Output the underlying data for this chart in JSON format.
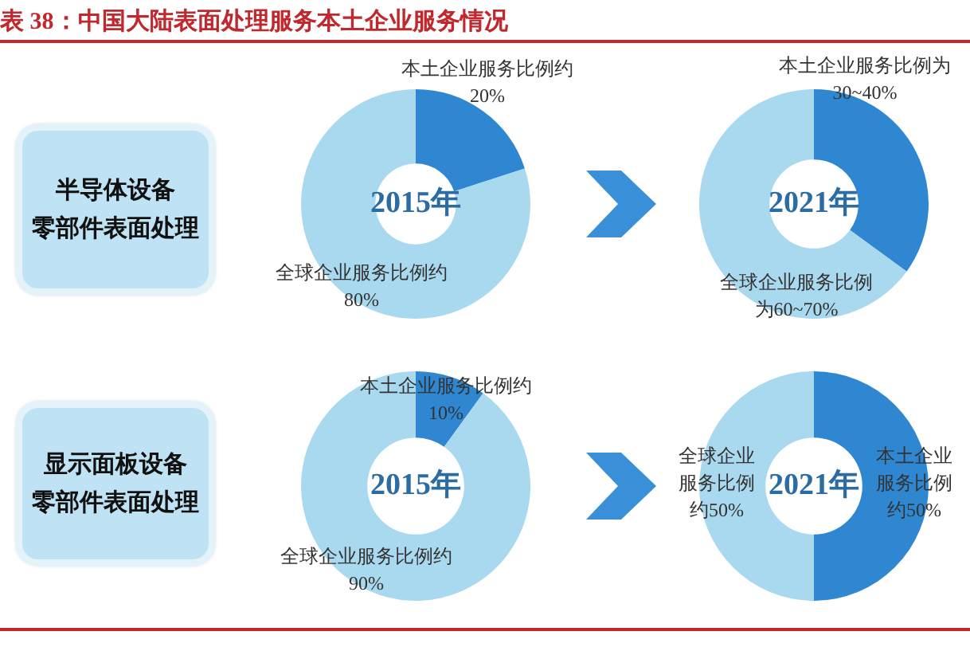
{
  "chart_data": [
    {
      "type": "other",
      "title": "表 38：中国大陆表面处理服务本土企业服务情况"
    },
    {
      "type": "other",
      "annotations": [
        "半导体设备",
        "零部件表面处理"
      ]
    },
    {
      "type": "donut",
      "title": "2015年",
      "categories": [
        "本土企业服务比例约",
        "全球企业服务比例约"
      ],
      "values": [
        20,
        80
      ],
      "colors": [
        "#2f87d2",
        "#a9d9ef"
      ],
      "value_labels": [
        "20%",
        "80%"
      ]
    },
    {
      "type": "donut",
      "title": "2021年",
      "categories": [
        "本土企业服务比例为30~40%",
        "全球企业服务比例为60~70%"
      ],
      "values": [
        35,
        65
      ],
      "colors": [
        "#2f87d2",
        "#a9d9ef"
      ]
    },
    {
      "type": "other",
      "annotations": [
        "显示面板设备",
        "零部件表面处理"
      ]
    },
    {
      "type": "donut",
      "title": "2015年",
      "categories": [
        "本土企业服务比例约",
        "全球企业服务比例约"
      ],
      "values": [
        10,
        90
      ],
      "colors": [
        "#2f87d2",
        "#a9d9ef"
      ],
      "value_labels": [
        "10%",
        "90%"
      ]
    },
    {
      "type": "donut",
      "title": "2021年",
      "categories": [
        "本土企业服务比例约",
        "全球企业服务比例约"
      ],
      "values": [
        50,
        50
      ],
      "colors": [
        "#2f87d2",
        "#a9d9ef"
      ],
      "value_labels": [
        "50%",
        "50%"
      ]
    }
  ]
}
